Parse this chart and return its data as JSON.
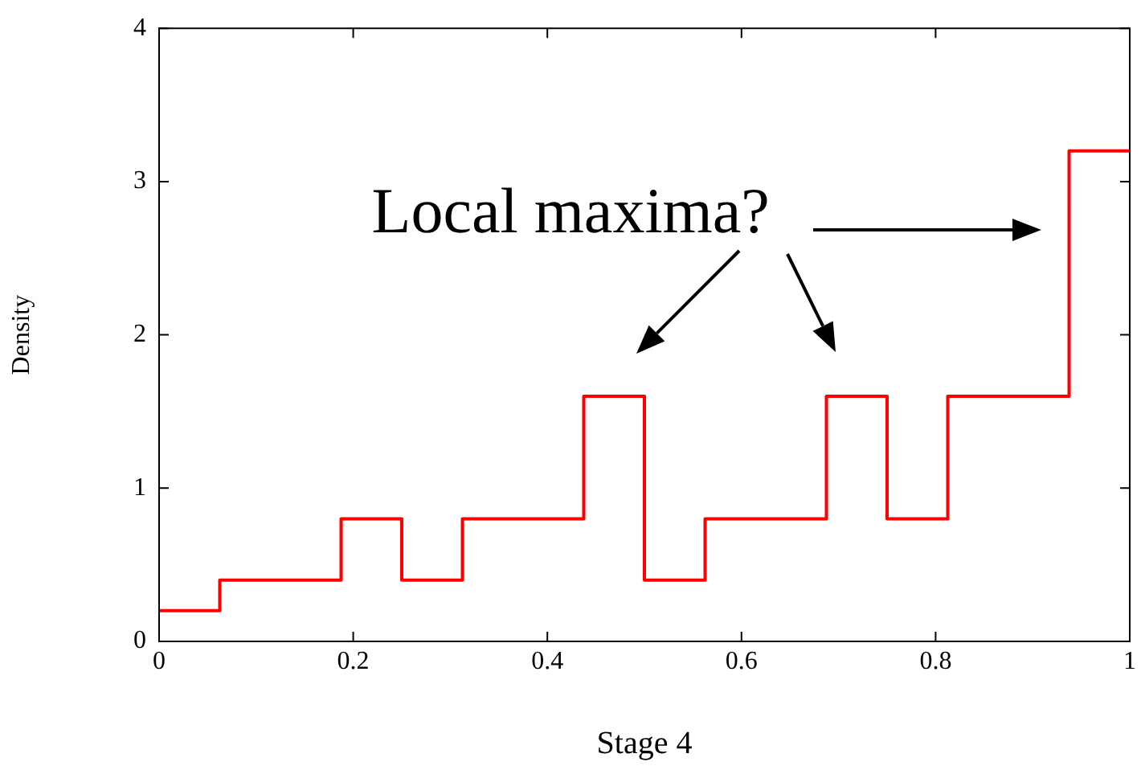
{
  "chart_data": {
    "type": "step",
    "xlabel": "Stage 4",
    "ylabel": "Density",
    "annotations": [
      "Local maxima?"
    ],
    "xlim": [
      0,
      1
    ],
    "xticks": [
      {
        "value": 0,
        "label": "0"
      },
      {
        "value": 0.2,
        "label": "0.2"
      },
      {
        "value": 0.4,
        "label": "0.4"
      },
      {
        "value": 0.6,
        "label": "0.6"
      },
      {
        "value": 0.8,
        "label": "0.8"
      },
      {
        "value": 1,
        "label": "1"
      }
    ],
    "ylim": [
      0,
      4
    ],
    "yticks": [
      0,
      1,
      2,
      3,
      4
    ],
    "grid": false,
    "legend": false,
    "series": [
      {
        "color": "#ff0000",
        "x": [
          0,
          0.0625,
          0.1875,
          0.25,
          0.3125,
          0.4375,
          0.5,
          0.5625,
          0.6875,
          0.75,
          0.8125,
          0.9375,
          1
        ],
        "values": [
          0.2,
          0.4,
          0.8,
          0.4,
          0.8,
          1.6,
          0.4,
          0.8,
          1.6,
          0.8,
          1.6,
          3.2,
          3.2
        ]
      }
    ]
  }
}
